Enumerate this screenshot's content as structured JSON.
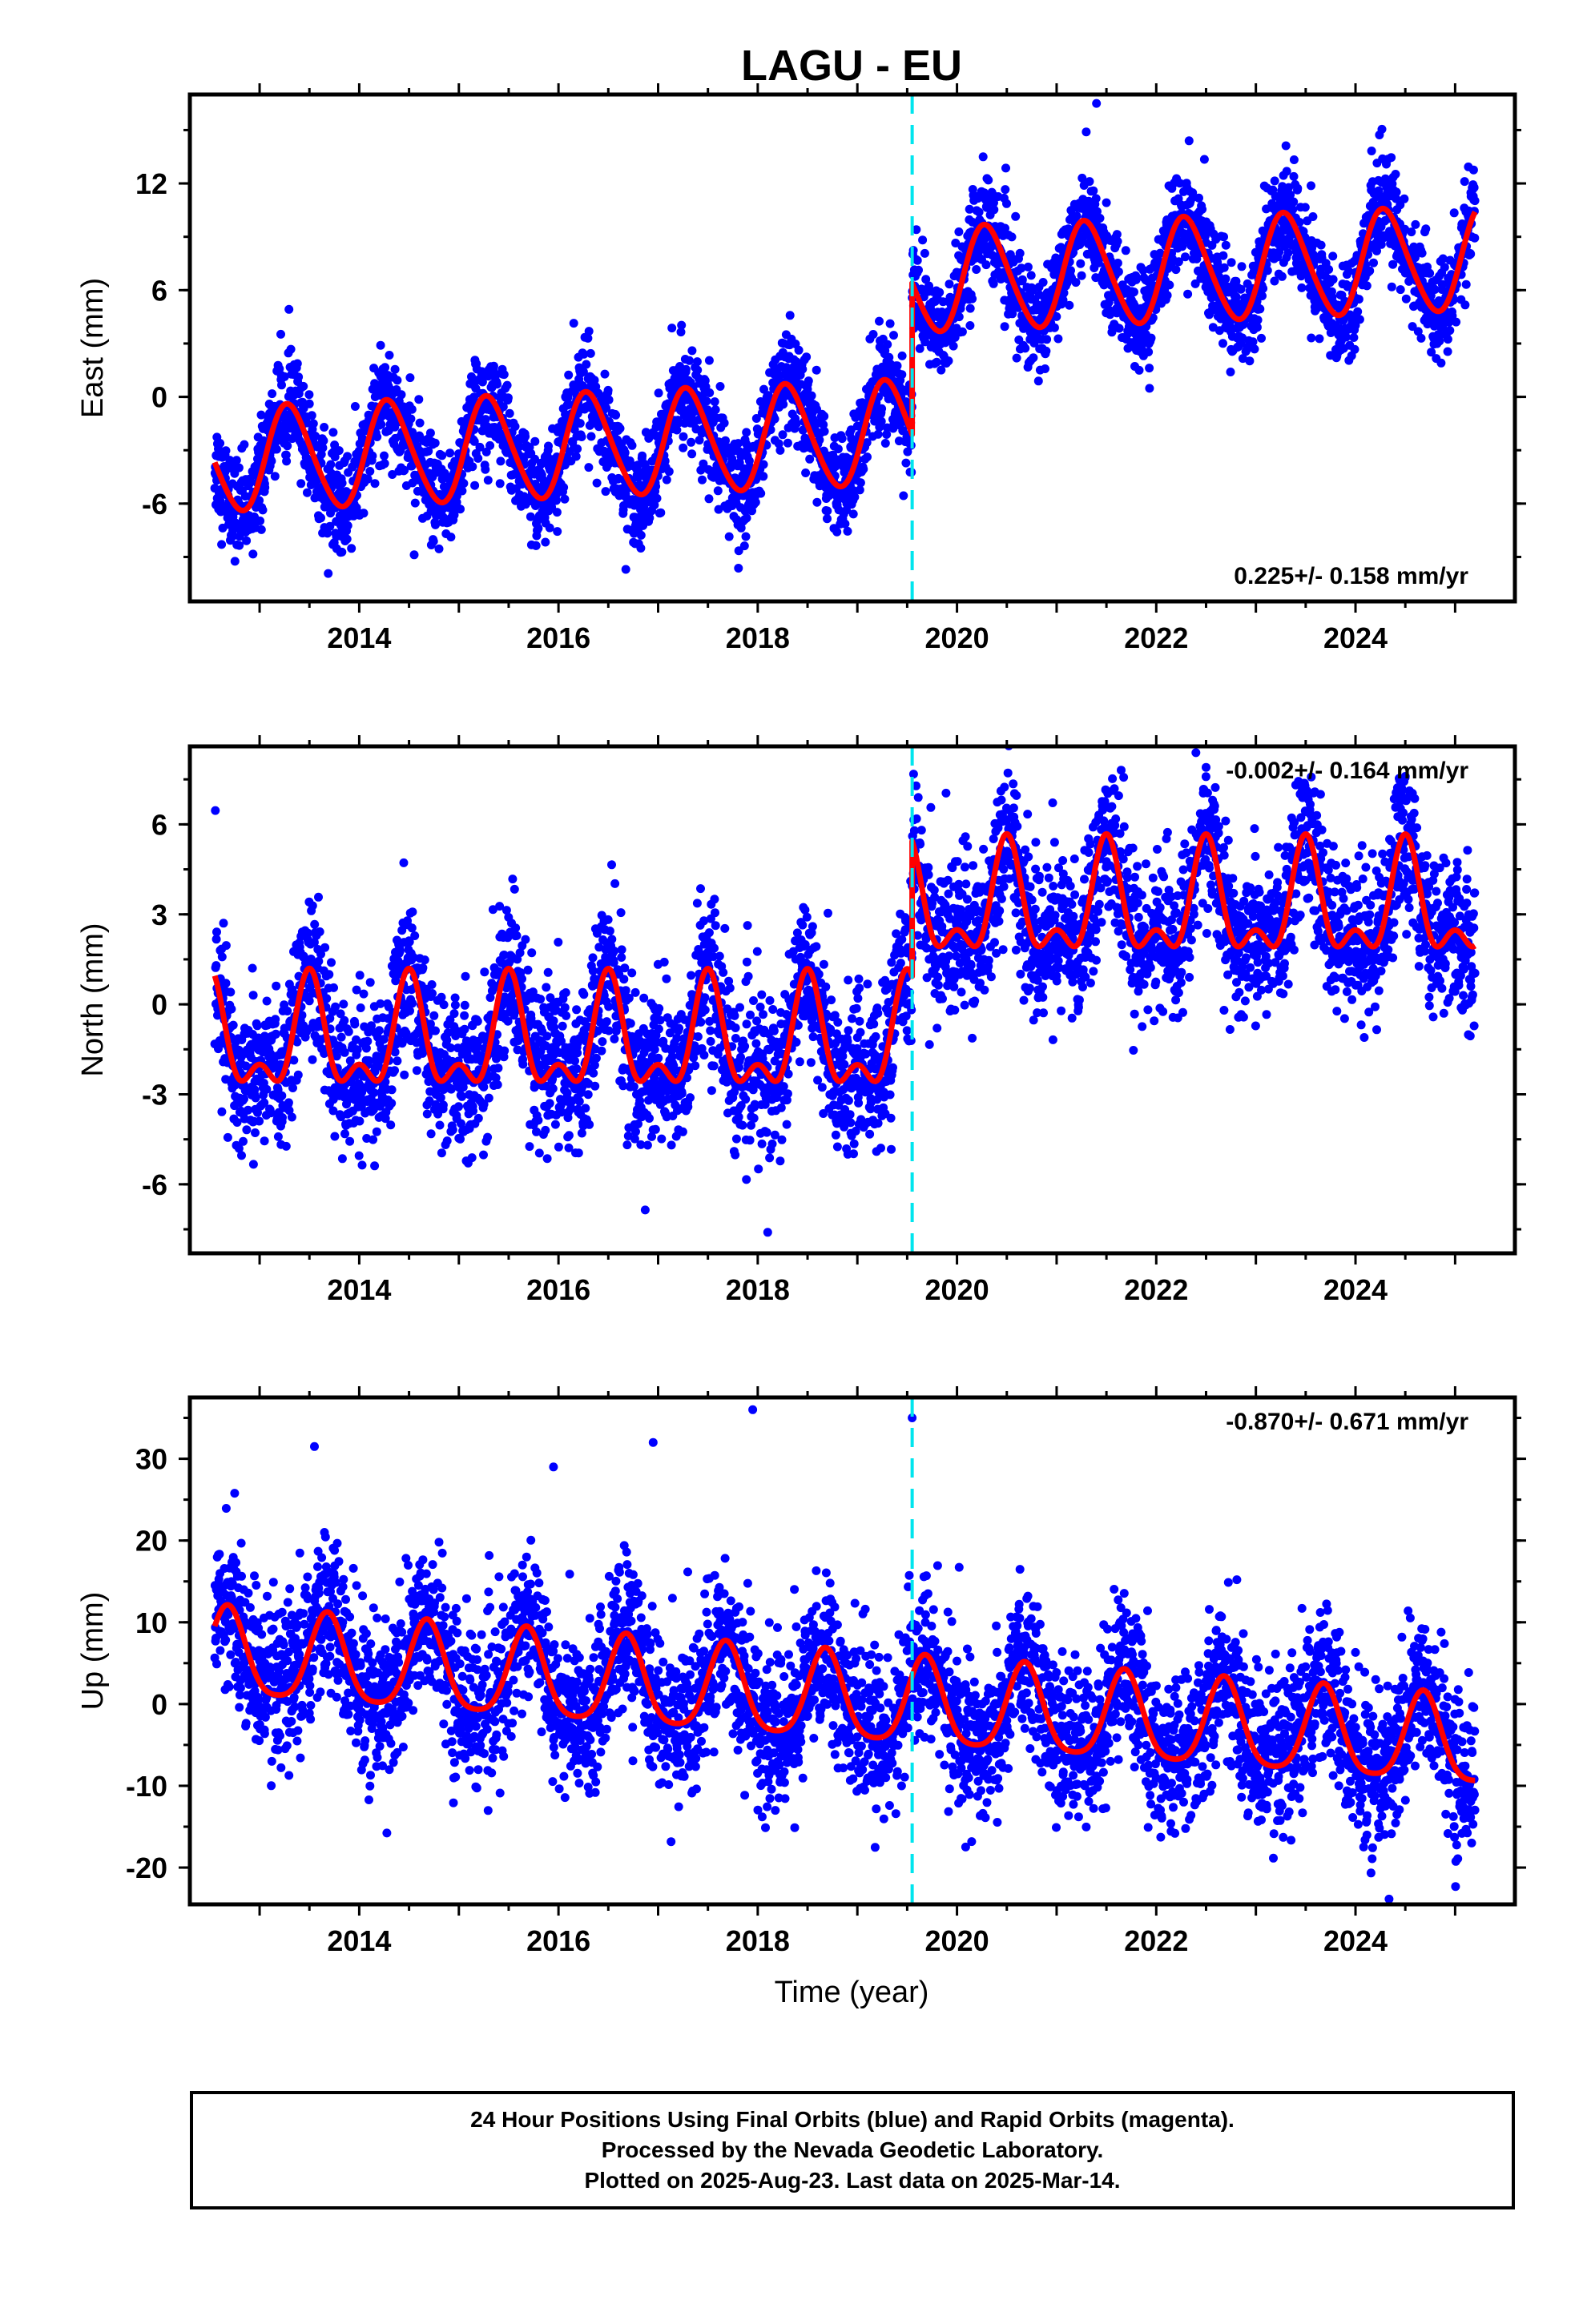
{
  "chart_data": {
    "type": "scatter",
    "title": "LAGU - EU",
    "xlabel": "Time (year)",
    "x_range": [
      2012.3,
      2025.6
    ],
    "x_ticks": [
      "2014",
      "2016",
      "2018",
      "2020",
      "2022",
      "2024"
    ],
    "offset_epoch": 2019.55,
    "colors": {
      "data": "#0000ff",
      "model": "#ff0000",
      "offset": "#00e5ee",
      "rapid": "#ff00ff"
    },
    "panels": [
      {
        "component": "east",
        "ylabel": "East (mm)",
        "ylim": [
          -11.5,
          17
        ],
        "y_ticks": [
          -6,
          0,
          6,
          12
        ],
        "rate_label": "0.225+/- 0.158 mm/yr",
        "rate_position": "bottom-right",
        "model": {
          "ref_year": 2012.5,
          "value_at_ref": -3.6,
          "rate": 0.225,
          "annual_amp": 2.9,
          "annual_phase": 2013.3,
          "semiannual_amp": 0.3,
          "semiannual_phase": 2013.2,
          "offset": 8.5
        },
        "noise": 1.4,
        "outliers": [
          [
            2021.4,
            16.5
          ]
        ],
        "series": [
          {
            "name": "Final Orbits",
            "style": "points"
          },
          {
            "name": "Trajectory model",
            "style": "line"
          }
        ]
      },
      {
        "component": "north",
        "ylabel": "North (mm)",
        "ylim": [
          -8.3,
          8.6
        ],
        "y_ticks": [
          -6,
          -3,
          0,
          3,
          6
        ],
        "rate_label": "-0.002+/- 0.164 mm/yr",
        "rate_position": "top-right",
        "model": {
          "ref_year": 2012.5,
          "value_at_ref": -1.3,
          "rate": -0.002,
          "annual_amp": 1.6,
          "annual_phase": 2013.5,
          "semiannual_amp": 0.9,
          "semiannual_phase": 2013.5,
          "offset": 4.5
        },
        "noise": 1.3,
        "outliers": [
          [
            2022.5,
            7.9
          ],
          [
            2024.5,
            7.6
          ],
          [
            2018.1,
            -7.6
          ]
        ],
        "series": [
          {
            "name": "Final Orbits",
            "style": "points"
          },
          {
            "name": "Trajectory model",
            "style": "line"
          }
        ]
      },
      {
        "component": "up",
        "ylabel": "Up (mm)",
        "ylim": [
          -24.5,
          37.5
        ],
        "y_ticks": [
          -20,
          -10,
          0,
          10,
          20,
          30
        ],
        "rate_label": "-0.870+/- 0.671 mm/yr",
        "rate_position": "top-right",
        "model": {
          "ref_year": 2012.5,
          "value_at_ref": 6.0,
          "rate": -0.87,
          "annual_amp": 5.3,
          "annual_phase": 2012.68,
          "semiannual_amp": 1.0,
          "semiannual_phase": 2012.68,
          "offset": 0.0
        },
        "noise": 4.8,
        "outliers": [
          [
            2017.95,
            36
          ],
          [
            2019.55,
            35
          ],
          [
            2013.55,
            31.5
          ],
          [
            2016.95,
            32
          ],
          [
            2015.95,
            29
          ]
        ],
        "series": [
          {
            "name": "Final Orbits",
            "style": "points"
          },
          {
            "name": "Trajectory model",
            "style": "line"
          }
        ]
      }
    ]
  },
  "footer": {
    "line1": "24 Hour Positions Using Final Orbits (blue) and Rapid Orbits (magenta).",
    "line2": "Processed by the Nevada Geodetic Laboratory.",
    "line3": "Plotted on 2025-Aug-23. Last data on 2025-Mar-14."
  }
}
